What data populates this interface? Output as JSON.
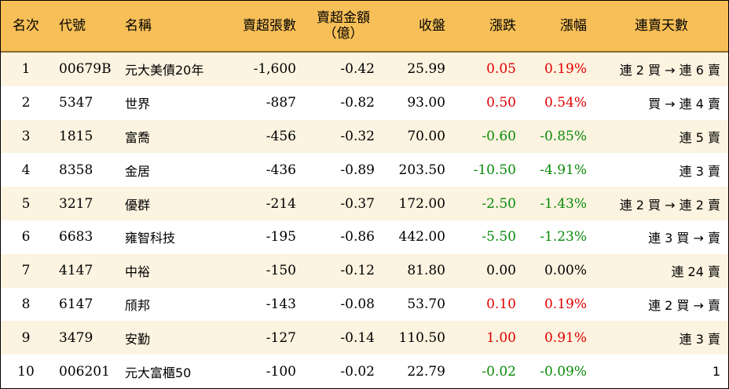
{
  "headers": {
    "rank": "名次",
    "code": "代號",
    "name": "名稱",
    "net_sell_lots": "賣超張數",
    "net_sell_amount_line1": "賣超金額",
    "net_sell_amount_line2": "（億）",
    "close": "收盤",
    "change": "漲跌",
    "change_pct": "漲幅",
    "streak": "連賣天數"
  },
  "colors": {
    "header_bg": "#f7bf57",
    "odd_row_bg": "#fcf3e0",
    "up": "#e00000",
    "down": "#0a8a0a"
  },
  "rows": [
    {
      "rank": "1",
      "code": "00679B",
      "name": "元大美債20年",
      "lots": "-1,600",
      "amount": "-0.42",
      "close": "25.99",
      "change": "0.05",
      "change_pct": "0.19%",
      "streak": "連 2 買 → 連 6 賣",
      "trend": "up"
    },
    {
      "rank": "2",
      "code": "5347",
      "name": "世界",
      "lots": "-887",
      "amount": "-0.82",
      "close": "93.00",
      "change": "0.50",
      "change_pct": "0.54%",
      "streak": "買 → 連 4 賣",
      "trend": "up"
    },
    {
      "rank": "3",
      "code": "1815",
      "name": "富喬",
      "lots": "-456",
      "amount": "-0.32",
      "close": "70.00",
      "change": "-0.60",
      "change_pct": "-0.85%",
      "streak": "連 5 賣",
      "trend": "down"
    },
    {
      "rank": "4",
      "code": "8358",
      "name": "金居",
      "lots": "-436",
      "amount": "-0.89",
      "close": "203.50",
      "change": "-10.50",
      "change_pct": "-4.91%",
      "streak": "連 3 賣",
      "trend": "down"
    },
    {
      "rank": "5",
      "code": "3217",
      "name": "優群",
      "lots": "-214",
      "amount": "-0.37",
      "close": "172.00",
      "change": "-2.50",
      "change_pct": "-1.43%",
      "streak": "連 2 買 → 連 2 賣",
      "trend": "down"
    },
    {
      "rank": "6",
      "code": "6683",
      "name": "雍智科技",
      "lots": "-195",
      "amount": "-0.86",
      "close": "442.00",
      "change": "-5.50",
      "change_pct": "-1.23%",
      "streak": "連 3 買 → 賣",
      "trend": "down"
    },
    {
      "rank": "7",
      "code": "4147",
      "name": "中裕",
      "lots": "-150",
      "amount": "-0.12",
      "close": "81.80",
      "change": "0.00",
      "change_pct": "0.00%",
      "streak": "連 24 賣",
      "trend": "flat"
    },
    {
      "rank": "8",
      "code": "6147",
      "name": "頎邦",
      "lots": "-143",
      "amount": "-0.08",
      "close": "53.70",
      "change": "0.10",
      "change_pct": "0.19%",
      "streak": "連 2 買 → 賣",
      "trend": "up"
    },
    {
      "rank": "9",
      "code": "3479",
      "name": "安勤",
      "lots": "-127",
      "amount": "-0.14",
      "close": "110.50",
      "change": "1.00",
      "change_pct": "0.91%",
      "streak": "連 3 賣",
      "trend": "up"
    },
    {
      "rank": "10",
      "code": "006201",
      "name": "元大富櫃50",
      "lots": "-100",
      "amount": "-0.02",
      "close": "22.79",
      "change": "-0.02",
      "change_pct": "-0.09%",
      "streak": "1",
      "trend": "down"
    }
  ]
}
